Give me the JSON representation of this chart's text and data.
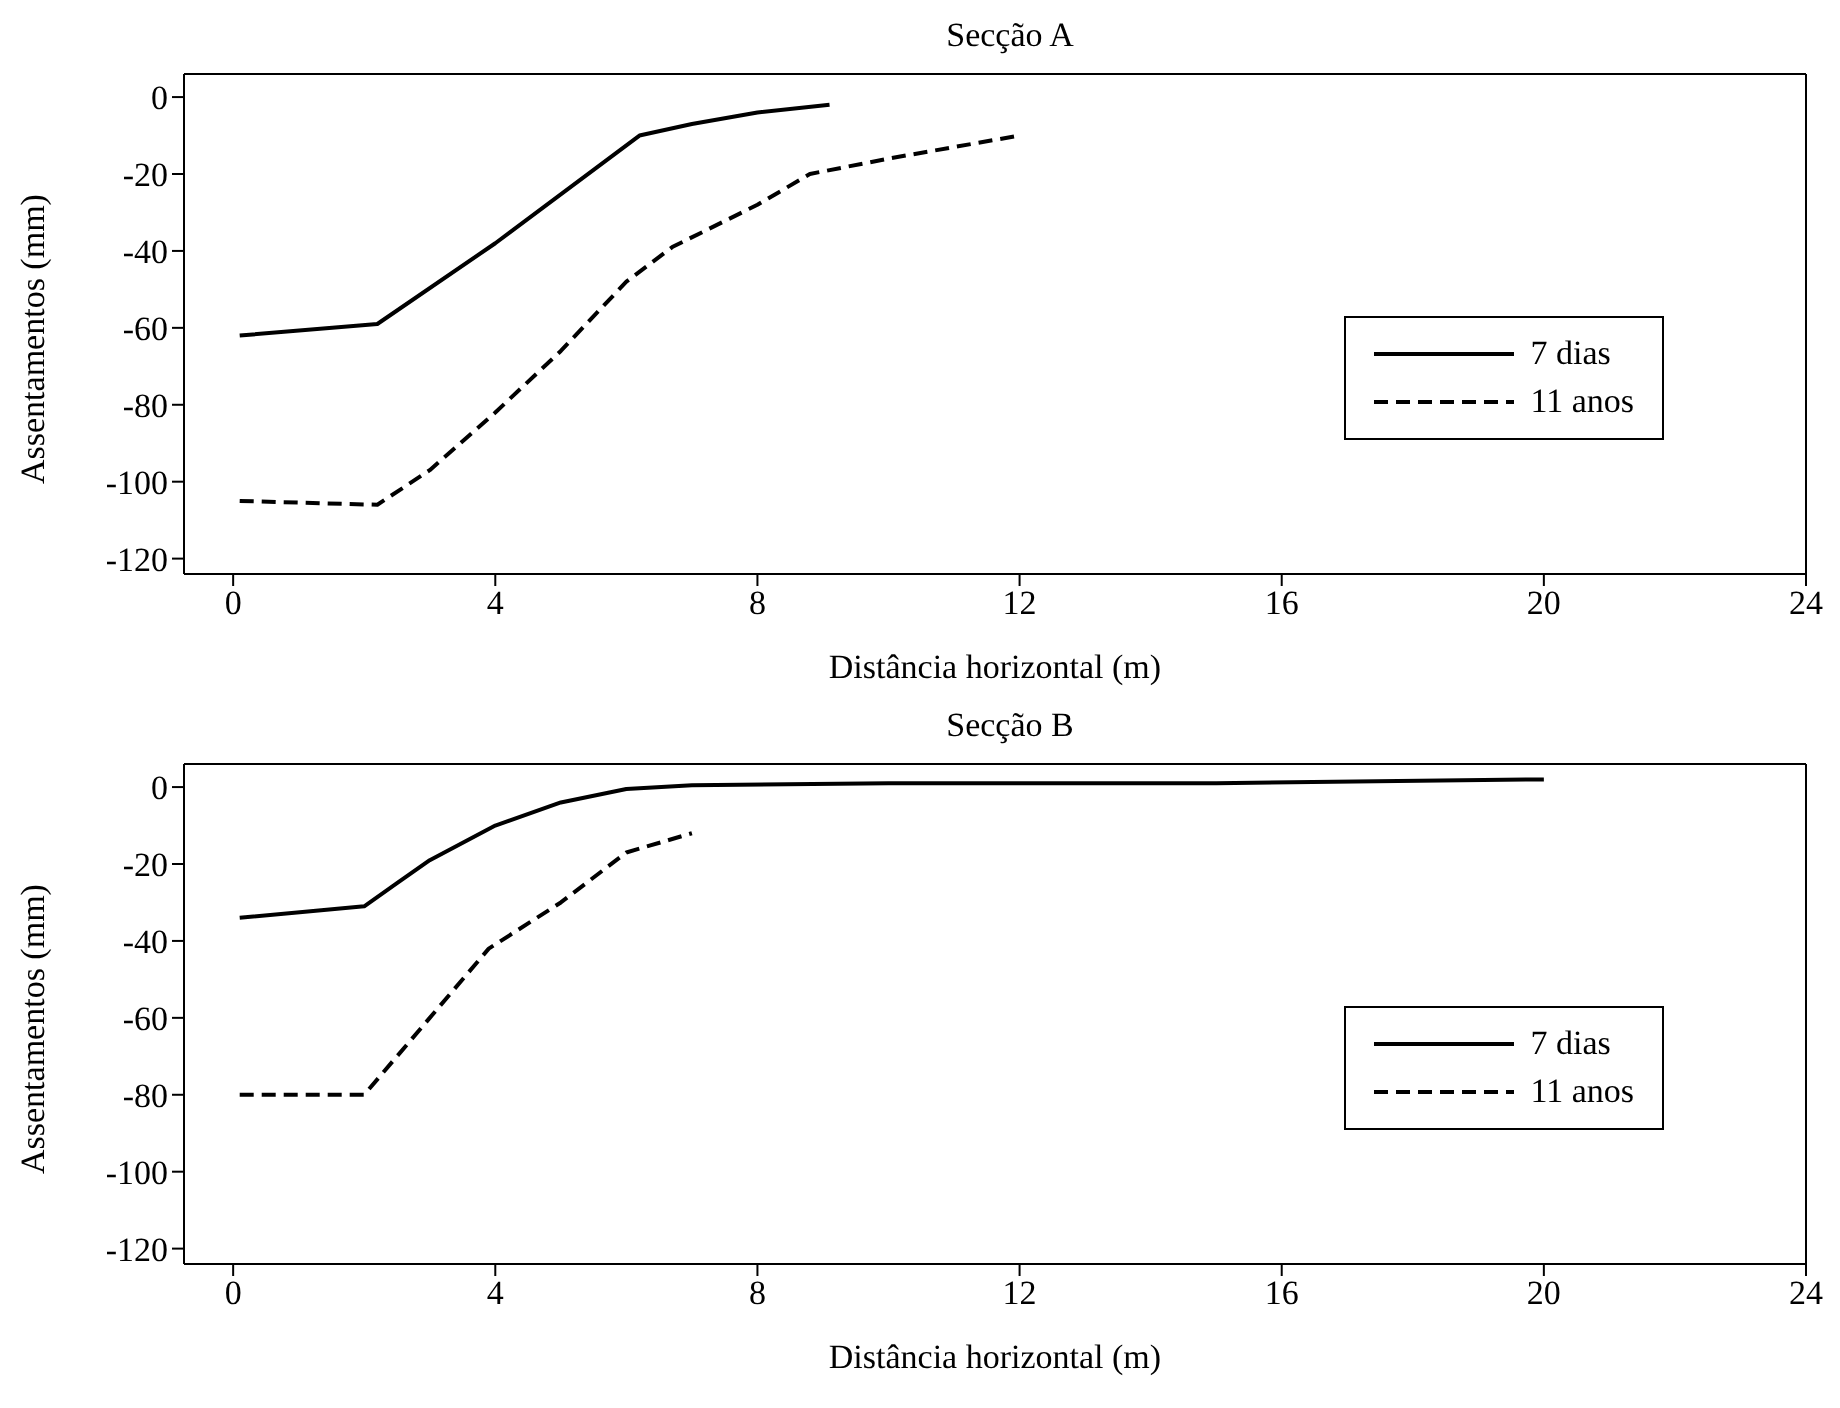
{
  "chart_data": [
    {
      "type": "line",
      "title": "Secção A",
      "xlabel": "Distância horizontal (m)",
      "ylabel": "Assentamentos (mm)",
      "xlim": [
        -0.75,
        24
      ],
      "xticks": [
        0,
        4,
        8,
        12,
        16,
        20,
        24
      ],
      "ylim": [
        -124,
        6
      ],
      "yticks": [
        0,
        -20,
        -40,
        -60,
        -80,
        -100,
        -120
      ],
      "legend": "right",
      "marker": "none",
      "series": [
        {
          "name": "7 dias",
          "color": "#000000",
          "line_style": "solid",
          "x": [
            0.1,
            2.2,
            4,
            6.2,
            7,
            8,
            9.1
          ],
          "values": [
            -62,
            -59,
            -38,
            -10,
            -7,
            -4,
            -2
          ]
        },
        {
          "name": "11 anos",
          "color": "#000000",
          "line_style": "dashed",
          "x": [
            0.1,
            2.2,
            3,
            4,
            5,
            6,
            6.7,
            8,
            8.8,
            10,
            12
          ],
          "values": [
            -105,
            -106,
            -97,
            -82,
            -66,
            -48,
            -39,
            -28,
            -20,
            -16,
            -10
          ]
        }
      ]
    },
    {
      "type": "line",
      "title": "Secção B",
      "xlabel": "Distância horizontal (m)",
      "ylabel": "Assentamentos (mm)",
      "xlim": [
        -0.75,
        24
      ],
      "xticks": [
        0,
        4,
        8,
        12,
        16,
        20,
        24
      ],
      "ylim": [
        -124,
        6
      ],
      "yticks": [
        0,
        -20,
        -40,
        -60,
        -80,
        -100,
        -120
      ],
      "legend": "right",
      "marker": "none",
      "series": [
        {
          "name": "7 dias",
          "color": "#000000",
          "line_style": "solid",
          "x": [
            0.1,
            2,
            2.5,
            3,
            4,
            5,
            6,
            7,
            10,
            15,
            20
          ],
          "values": [
            -34,
            -31,
            -25,
            -19,
            -10,
            -4,
            -0.5,
            0.5,
            1,
            1,
            2
          ]
        },
        {
          "name": "11 anos",
          "color": "#000000",
          "line_style": "dashed",
          "x": [
            0.1,
            2,
            3,
            3.9,
            5,
            6,
            7
          ],
          "values": [
            -80,
            -80,
            -60,
            -42,
            -30,
            -17,
            -12
          ]
        }
      ]
    }
  ]
}
